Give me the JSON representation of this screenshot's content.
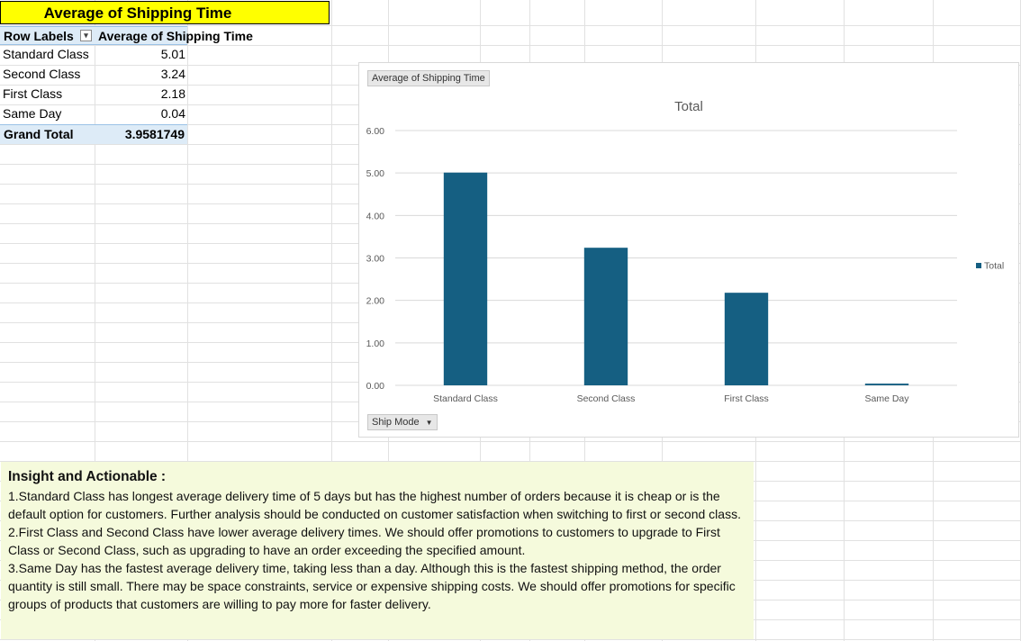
{
  "title": "Average of Shipping Time",
  "pivot": {
    "row_labels_header": "Row Labels",
    "filter_icon": "sort-filter-icon",
    "value_header": "Average of Shipping Time",
    "rows": [
      {
        "label": "Standard Class",
        "value": "5.01"
      },
      {
        "label": "Second Class",
        "value": "3.24"
      },
      {
        "label": "First Class",
        "value": "2.18"
      },
      {
        "label": "Same Day",
        "value": "0.04"
      }
    ],
    "grand_total_label": "Grand Total",
    "grand_total_value": "3.9581749"
  },
  "chart_buttons": {
    "value_field": "Average of Shipping Time",
    "axis_field": "Ship Mode",
    "axis_field_icon": "dropdown-arrow-icon"
  },
  "chart_data": {
    "type": "bar",
    "title": "Total",
    "categories": [
      "Standard Class",
      "Second Class",
      "First Class",
      "Same Day"
    ],
    "series": [
      {
        "name": "Total",
        "values": [
          5.01,
          3.24,
          2.18,
          0.04
        ],
        "color": "#155f82"
      }
    ],
    "ylim": [
      0,
      6
    ],
    "yticks": [
      "0.00",
      "1.00",
      "2.00",
      "3.00",
      "4.00",
      "5.00",
      "6.00"
    ],
    "grid": true,
    "legend": "right"
  },
  "insight": {
    "heading": "Insight and Actionable :",
    "points": [
      "1.Standard Class has longest average delivery time of 5 days but has the highest number of orders because it is cheap or is the default option for customers. Further analysis should be conducted on customer satisfaction when switching to first or second class.",
      "2.First Class and Second Class have lower average delivery times. We should offer promotions to customers to upgrade to First Class or Second Class, such as upgrading to have an order exceeding the specified amount.",
      "3.Same Day has the fastest average delivery time, taking less than a day. Although this is the fastest shipping method, the order quantity is still small. There may be space constraints, service or expensive shipping costs. We should offer promotions for specific groups of products that customers are willing to pay more for faster delivery."
    ]
  }
}
